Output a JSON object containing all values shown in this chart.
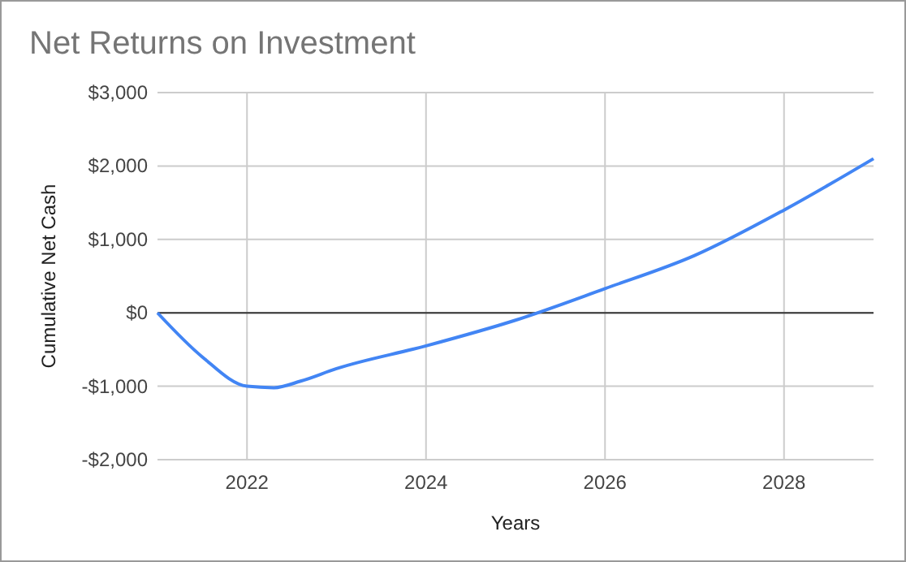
{
  "chart_data": {
    "type": "line",
    "title": "Net Returns on Investment",
    "xlabel": "Years",
    "ylabel": "Cumulative Net Cash",
    "x": [
      2021,
      2021.5,
      2022,
      2022.3,
      2022.6,
      2023,
      2024,
      2025,
      2026,
      2027,
      2028,
      2029
    ],
    "series": [
      {
        "color": "#4285f4",
        "values": [
          0,
          -600,
          -1000,
          -1020,
          -930,
          -760,
          -450,
          -100,
          330,
          780,
          1400,
          2100
        ]
      }
    ],
    "xlim": [
      2021,
      2029
    ],
    "xticks": [
      2022,
      2024,
      2026,
      2028
    ],
    "ylim": [
      -2000,
      3000
    ],
    "yticks": [
      {
        "value": -2000,
        "label": "-$2,000"
      },
      {
        "value": -1000,
        "label": "-$1,000"
      },
      {
        "value": 0,
        "label": "$0"
      },
      {
        "value": 1000,
        "label": "$1,000"
      },
      {
        "value": 2000,
        "label": "$2,000"
      },
      {
        "value": 3000,
        "label": "$3,000"
      }
    ],
    "grid": true,
    "marker": "none",
    "line_style": "solid"
  }
}
